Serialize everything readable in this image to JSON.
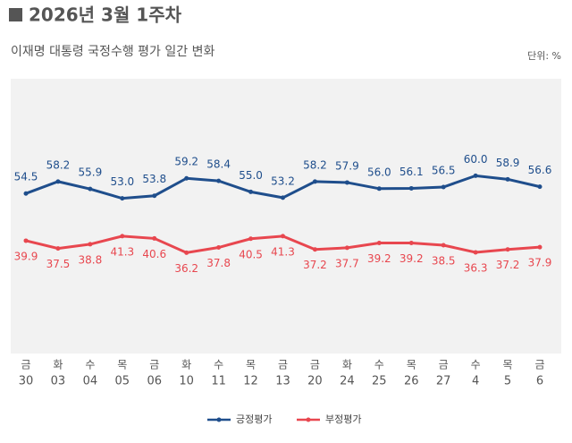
{
  "chart_data": {
    "type": "line",
    "title": "2026년 3월 1주차",
    "subtitle": "이재명 대통령 국정수행 평가 일간 변화",
    "unit_label": "단위: %",
    "categories": [
      [
        "금",
        "30"
      ],
      [
        "화",
        "03"
      ],
      [
        "수",
        "04"
      ],
      [
        "목",
        "05"
      ],
      [
        "금",
        "06"
      ],
      [
        "화",
        "10"
      ],
      [
        "수",
        "11"
      ],
      [
        "목",
        "12"
      ],
      [
        "금",
        "13"
      ],
      [
        "금",
        "20"
      ],
      [
        "화",
        "24"
      ],
      [
        "수",
        "25"
      ],
      [
        "목",
        "26"
      ],
      [
        "금",
        "27"
      ],
      [
        "수",
        "4"
      ],
      [
        "목",
        "5"
      ],
      [
        "금",
        "6"
      ]
    ],
    "ylim": [
      5,
      90
    ],
    "series": [
      {
        "name": "긍정평가",
        "color": "#1f4e8c",
        "values": [
          54.5,
          58.2,
          55.9,
          53.0,
          53.8,
          59.2,
          58.4,
          55.0,
          53.2,
          58.2,
          57.9,
          56.0,
          56.1,
          56.5,
          60.0,
          58.9,
          56.6
        ],
        "value_labels": [
          "54.5",
          "58.2",
          "55.9",
          "53.0",
          "53.8",
          "59.2",
          "58.4",
          "55.0",
          "53.2",
          "58.2",
          "57.9",
          "56.0",
          "56.1",
          "56.5",
          "60.0",
          "58.9",
          "56.6"
        ]
      },
      {
        "name": "부정평가",
        "color": "#e8474f",
        "values": [
          39.9,
          37.5,
          38.8,
          41.3,
          40.6,
          36.2,
          37.8,
          40.5,
          41.3,
          37.2,
          37.7,
          39.2,
          39.2,
          38.5,
          36.3,
          37.2,
          37.9
        ],
        "value_labels": [
          "39.9",
          "37.5",
          "38.8",
          "41.3",
          "40.6",
          "36.2",
          "37.8",
          "40.5",
          "41.3",
          "37.2",
          "37.7",
          "39.2",
          "39.2",
          "38.5",
          "36.3",
          "37.2",
          "37.9"
        ]
      }
    ]
  }
}
